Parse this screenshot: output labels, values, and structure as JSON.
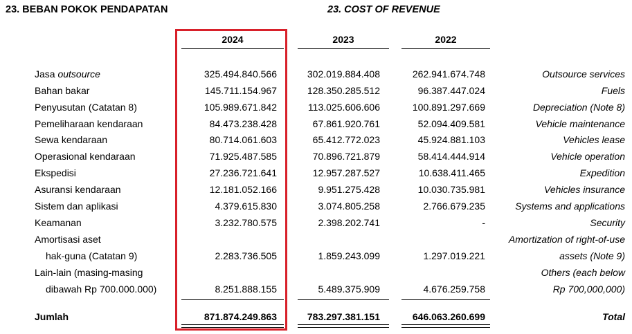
{
  "header": {
    "title_id": "23.  BEBAN POKOK PENDAPATAN",
    "title_en": "23.  COST OF REVENUE"
  },
  "columns": [
    "2024",
    "2023",
    "2022"
  ],
  "rows": [
    {
      "label_id": "Jasa ",
      "label_id_italic": "outsource",
      "values": [
        "325.494.840.566",
        "302.019.884.408",
        "262.941.674.748"
      ],
      "label_en": "Outsource services"
    },
    {
      "label_id": "Bahan bakar",
      "values": [
        "145.711.154.967",
        "128.350.285.512",
        "96.387.447.024"
      ],
      "label_en": "Fuels"
    },
    {
      "label_id": "Penyusutan (Catatan 8)",
      "values": [
        "105.989.671.842",
        "113.025.606.606",
        "100.891.297.669"
      ],
      "label_en": "Depreciation (Note 8)"
    },
    {
      "label_id": "Pemeliharaan kendaraan",
      "values": [
        "84.473.238.428",
        "67.861.920.761",
        "52.094.409.581"
      ],
      "label_en": "Vehicle maintenance"
    },
    {
      "label_id": "Sewa kendaraan",
      "values": [
        "80.714.061.603",
        "65.412.772.023",
        "45.924.881.103"
      ],
      "label_en": "Vehicles lease"
    },
    {
      "label_id": "Operasional kendaraan",
      "values": [
        "71.925.487.585",
        "70.896.721.879",
        "58.414.444.914"
      ],
      "label_en": "Vehicle operation"
    },
    {
      "label_id": "Ekspedisi",
      "values": [
        "27.236.721.641",
        "12.957.287.527",
        "10.638.411.465"
      ],
      "label_en": "Expedition"
    },
    {
      "label_id": "Asuransi kendaraan",
      "values": [
        "12.181.052.166",
        "9.951.275.428",
        "10.030.735.981"
      ],
      "label_en": "Vehicles insurance"
    },
    {
      "label_id": "Sistem dan aplikasi",
      "values": [
        "4.379.615.830",
        "3.074.805.258",
        "2.766.679.235"
      ],
      "label_en": "Systems and applications"
    },
    {
      "label_id": "Keamanan",
      "values": [
        "3.232.780.575",
        "2.398.202.741",
        "-"
      ],
      "label_en": "Security"
    },
    {
      "label_id": "Amortisasi aset",
      "label_id_2": "hak-guna (Catatan 9)",
      "values": [
        "2.283.736.505",
        "1.859.243.099",
        "1.297.019.221"
      ],
      "label_en": "Amortization of right-of-use",
      "label_en_2": "assets (Note 9)"
    },
    {
      "label_id": "Lain-lain (masing-masing",
      "label_id_2": "dibawah Rp 700.000.000)",
      "values": [
        "8.251.888.155",
        "5.489.375.909",
        "4.676.259.758"
      ],
      "label_en": "Others (each below",
      "label_en_2": "Rp 700,000,000)"
    }
  ],
  "total": {
    "label_id": "Jumlah",
    "values": [
      "871.874.249.863",
      "783.297.381.151",
      "646.063.260.699"
    ],
    "label_en": "Total"
  },
  "highlight_color": "#d8202a"
}
